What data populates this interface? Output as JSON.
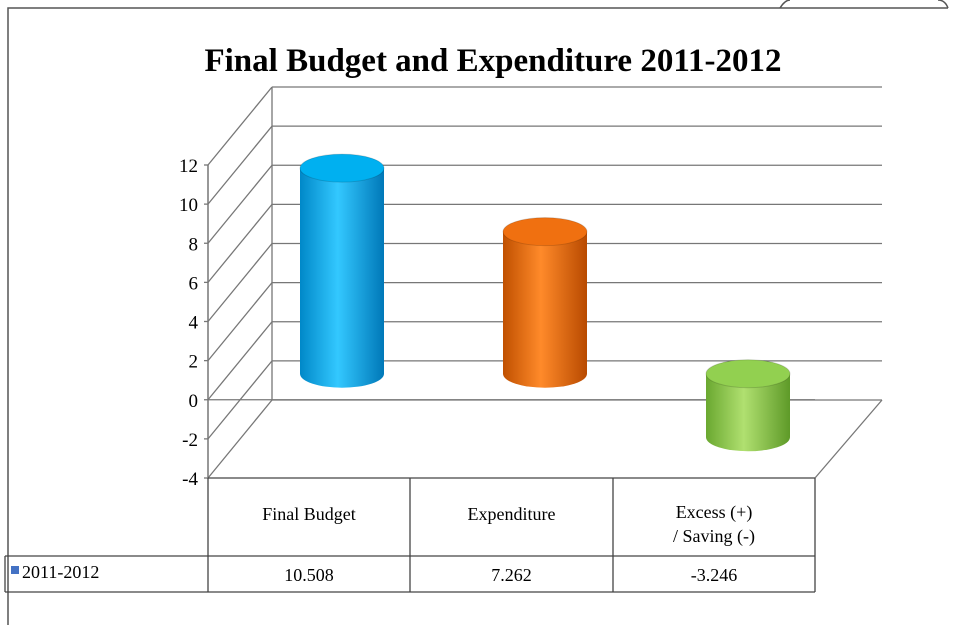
{
  "chart_data": {
    "type": "bar",
    "title": "Final Budget and Expenditure 2011-2012",
    "categories": [
      [
        "Final Budget"
      ],
      [
        "Expenditure"
      ],
      [
        "Excess (+)",
        "/ Saving (-)"
      ]
    ],
    "series": [
      {
        "name": "2011-2012",
        "values": [
          10.508,
          7.262,
          -3.246
        ],
        "value_labels": [
          "10.508",
          "7.262",
          "-3.246"
        ],
        "colors": [
          "#00b0f0",
          "#f07010",
          "#92d050"
        ]
      }
    ],
    "ylim": [
      -4,
      12
    ],
    "yticks": [
      "12",
      "10",
      "8",
      "6",
      "4",
      "2",
      "0",
      "-2",
      "-4"
    ],
    "grid": true,
    "legend": "data-table-row",
    "data_table": true,
    "style": "3d-cylinder"
  }
}
